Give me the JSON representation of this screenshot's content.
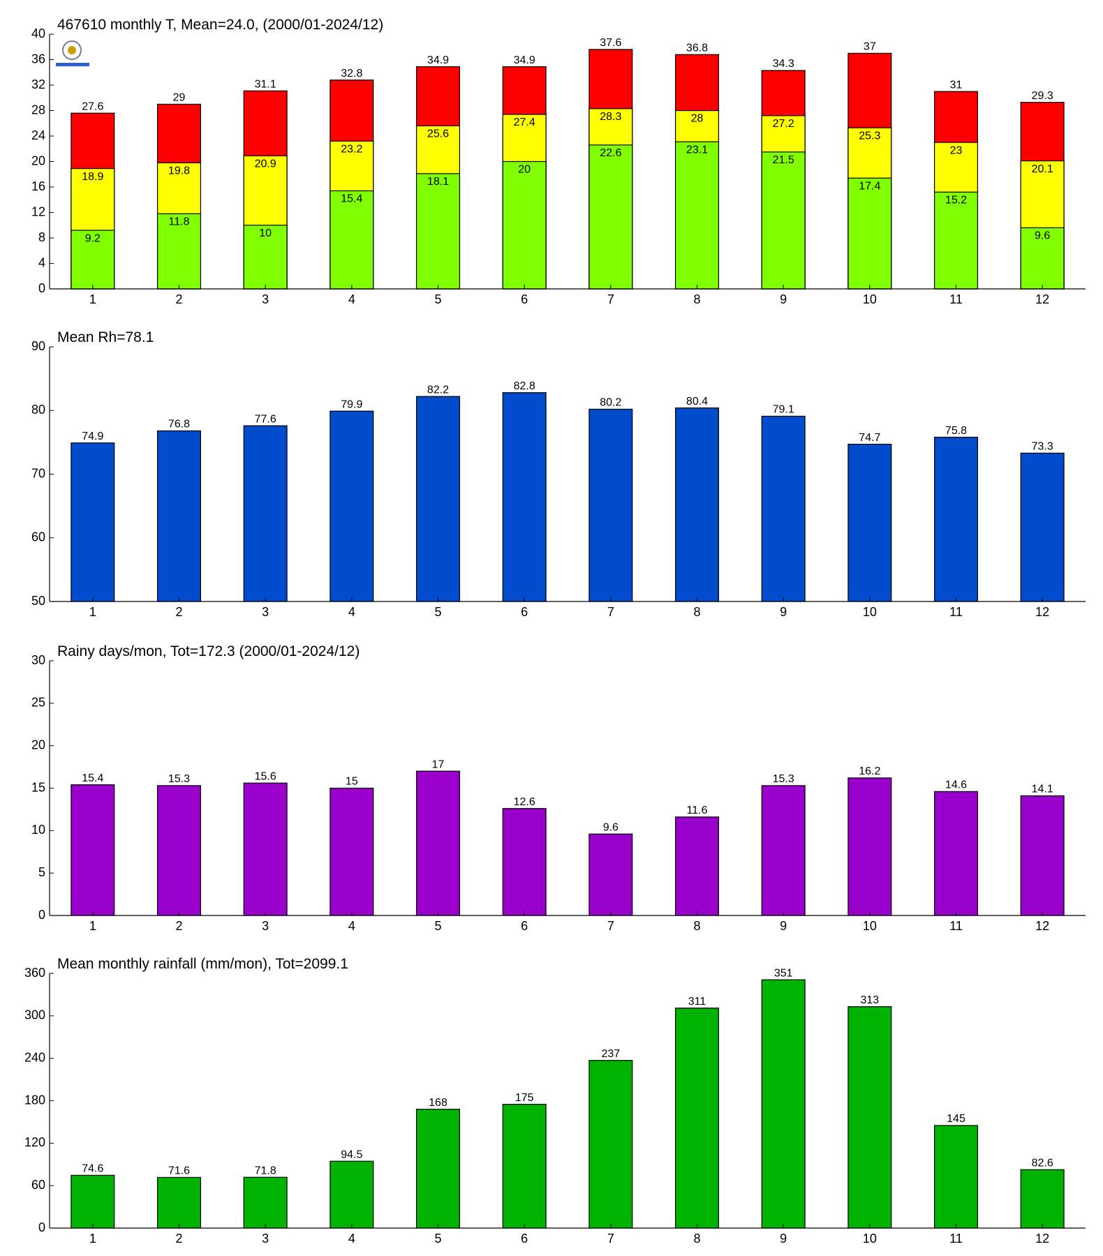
{
  "chart_data": [
    {
      "type": "overlapped_bar",
      "title": "467610 monthly T, Mean=24.0, (2000/01-2024/12)",
      "categories": [
        "1",
        "2",
        "3",
        "4",
        "5",
        "6",
        "7",
        "8",
        "9",
        "10",
        "11",
        "12"
      ],
      "series": [
        {
          "color": "#ff0000",
          "values": [
            27.6,
            29,
            31.1,
            32.8,
            34.9,
            34.9,
            37.6,
            36.8,
            34.3,
            37,
            31,
            29.3
          ]
        },
        {
          "color": "#ffff00",
          "values": [
            18.9,
            19.8,
            20.9,
            23.2,
            25.6,
            27.4,
            28.3,
            28,
            27.2,
            25.3,
            23,
            20.1
          ]
        },
        {
          "color": "#80ff00",
          "values": [
            9.2,
            11.8,
            10,
            15.4,
            18.1,
            20,
            22.6,
            23.1,
            21.5,
            17.4,
            15.2,
            9.6
          ]
        }
      ],
      "ylim": [
        0,
        40
      ],
      "yticks": [
        0,
        4,
        8,
        12,
        16,
        20,
        24,
        28,
        32,
        36,
        40
      ]
    },
    {
      "type": "bar",
      "title": "Mean Rh=78.1",
      "categories": [
        "1",
        "2",
        "3",
        "4",
        "5",
        "6",
        "7",
        "8",
        "9",
        "10",
        "11",
        "12"
      ],
      "values": [
        74.9,
        76.8,
        77.6,
        79.9,
        82.2,
        82.8,
        80.2,
        80.4,
        79.1,
        74.7,
        75.8,
        73.3
      ],
      "color": "#004ccc",
      "ylim": [
        50,
        90
      ],
      "yticks": [
        50,
        60,
        70,
        80,
        90
      ]
    },
    {
      "type": "bar",
      "title": "Rainy days/mon, Tot=172.3 (2000/01-2024/12)",
      "categories": [
        "1",
        "2",
        "3",
        "4",
        "5",
        "6",
        "7",
        "8",
        "9",
        "10",
        "11",
        "12"
      ],
      "values": [
        15.4,
        15.3,
        15.6,
        15,
        17,
        12.6,
        9.6,
        11.6,
        15.3,
        16.2,
        14.6,
        14.1
      ],
      "color": "#9900cc",
      "ylim": [
        0,
        30
      ],
      "yticks": [
        0,
        5,
        10,
        15,
        20,
        25,
        30
      ]
    },
    {
      "type": "bar",
      "title": "Mean monthly rainfall (mm/mon), Tot=2099.1",
      "categories": [
        "1",
        "2",
        "3",
        "4",
        "5",
        "6",
        "7",
        "8",
        "9",
        "10",
        "11",
        "12"
      ],
      "values": [
        74.6,
        71.6,
        71.8,
        94.5,
        168,
        175,
        237,
        311,
        351,
        313,
        145,
        82.6
      ],
      "color": "#00b300",
      "ylim": [
        0,
        360
      ],
      "yticks": [
        0,
        60,
        120,
        180,
        240,
        300,
        360
      ]
    }
  ]
}
